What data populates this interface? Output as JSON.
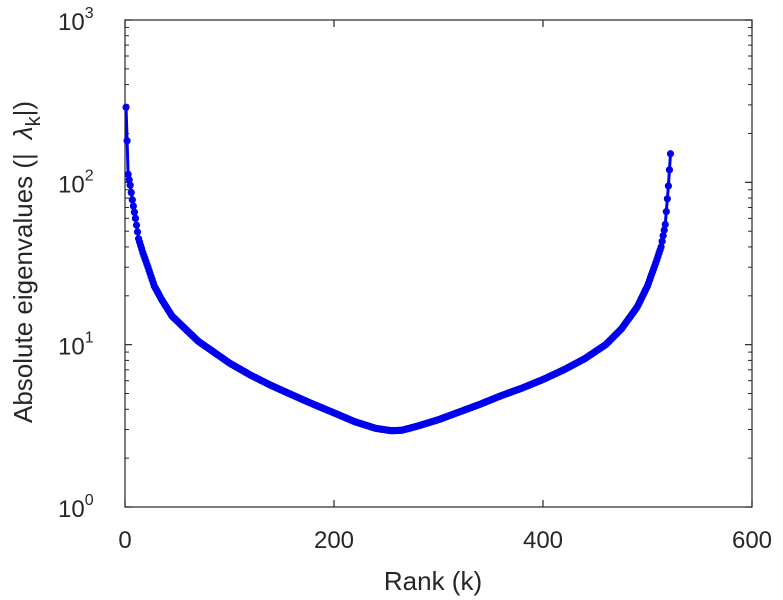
{
  "chart_data": {
    "type": "line",
    "xlabel": "Rank (k)",
    "ylabel_parts": [
      "Absolute eigenvalues (|",
      "λ",
      "k",
      "|)"
    ],
    "xlim": [
      0,
      600
    ],
    "ylim": [
      1,
      1000
    ],
    "yscale": "log",
    "grid": false,
    "marker": "circle",
    "x_ticks": [
      {
        "value": 0,
        "label": "0"
      },
      {
        "value": 200,
        "label": "200"
      },
      {
        "value": 400,
        "label": "400"
      },
      {
        "value": 600,
        "label": "600"
      }
    ],
    "y_ticks": [
      {
        "value": 1,
        "base": "10",
        "exp": "0"
      },
      {
        "value": 10,
        "base": "10",
        "exp": "1"
      },
      {
        "value": 100,
        "base": "10",
        "exp": "2"
      },
      {
        "value": 1000,
        "base": "10",
        "exp": "3"
      }
    ],
    "series": [
      {
        "color": "#0000ee",
        "x": [
          1,
          3,
          5,
          7,
          10,
          13,
          17,
          22,
          28,
          35,
          45,
          55,
          70,
          85,
          100,
          120,
          140,
          160,
          180,
          200,
          220,
          240,
          255,
          265,
          280,
          300,
          320,
          340,
          360,
          380,
          400,
          420,
          440,
          460,
          475,
          490,
          500,
          508,
          513,
          517,
          520,
          522
        ],
        "y": [
          290,
          112,
          96,
          78,
          60,
          45,
          37,
          30,
          23,
          19,
          15,
          13,
          10.5,
          9,
          7.7,
          6.5,
          5.6,
          4.9,
          4.3,
          3.8,
          3.35,
          3.05,
          2.95,
          2.97,
          3.15,
          3.45,
          3.85,
          4.3,
          4.85,
          5.4,
          6.1,
          7.0,
          8.2,
          10.0,
          12.5,
          17,
          23,
          32,
          40,
          55,
          95,
          150
        ]
      }
    ]
  }
}
